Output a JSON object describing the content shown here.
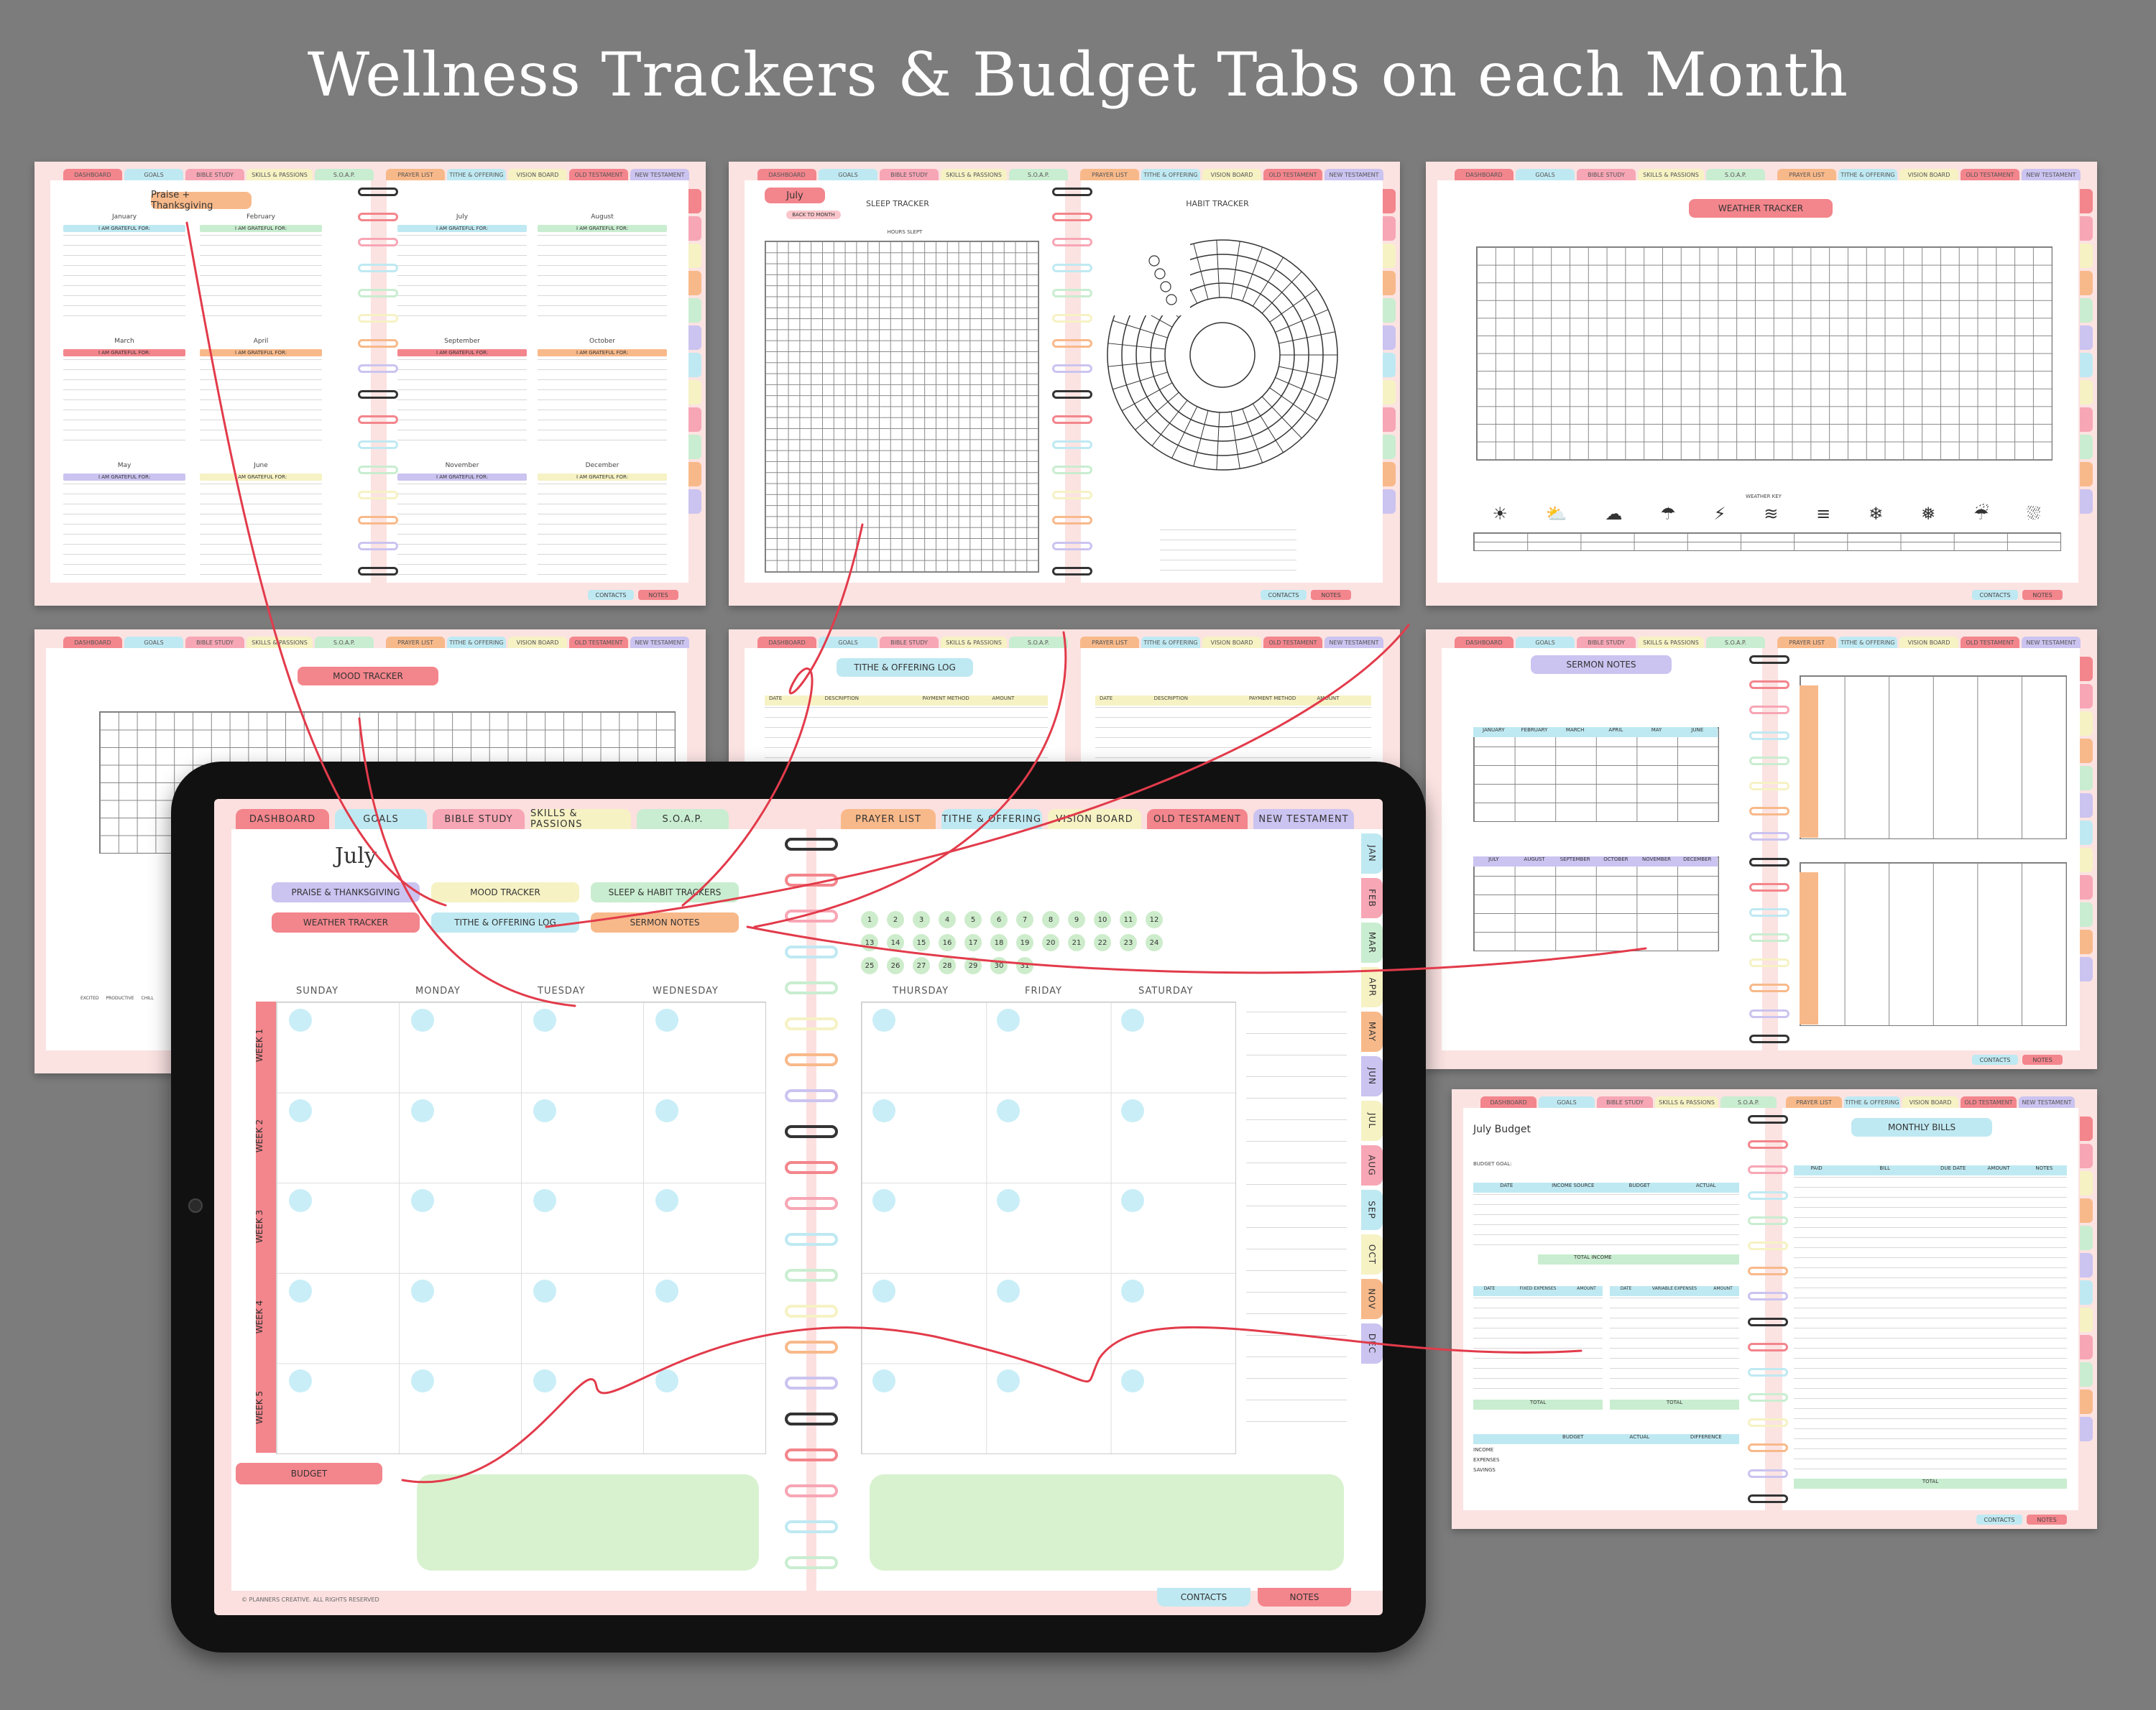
{
  "headline": "Wellness Trackers & Budget Tabs on each Month",
  "colors": {
    "background": "#7c7c7c",
    "pink": "#f3858c",
    "red_line": "#e23b4b",
    "tab_palette": [
      "#f3858c",
      "#bfe9f2",
      "#f7a6b5",
      "#f6f2c4",
      "#c9edd0",
      "#f8b98a",
      "#f9c6cb",
      "#bfe9f2",
      "#f6f2c4",
      "#f3858c",
      "#cbc3f0"
    ]
  },
  "top_tabs": [
    "DASHBOARD",
    "GOALS",
    "BIBLE STUDY",
    "SKILLS & PASSIONS",
    "S.O.A.P.",
    "PRAYER LIST",
    "TITHE & OFFERING",
    "VISION BOARD",
    "OLD TESTAMENT",
    "NEW TESTAMENT"
  ],
  "footer_tabs": [
    "CONTACTS",
    "NOTES"
  ],
  "months_short": [
    "JAN",
    "FEB",
    "MAR",
    "APR",
    "MAY",
    "JUN",
    "JUL",
    "AUG",
    "SEP",
    "OCT",
    "NOV",
    "DEC"
  ],
  "card_praise": {
    "title": "Praise + Thanksgiving",
    "months": [
      "January",
      "February",
      "July",
      "August",
      "March",
      "April",
      "September",
      "October",
      "May",
      "June",
      "November",
      "December"
    ],
    "line_label": "I AM GRATEFUL FOR:"
  },
  "card_sleep": {
    "month": "July",
    "back": "BACK TO MONTH",
    "sleep_title": "SLEEP TRACKER",
    "habit_title": "HABIT TRACKER",
    "hours_label": "HOURS SLEPT"
  },
  "card_weather": {
    "title": "WEATHER TRACKER",
    "key_label": "WEATHER KEY",
    "key_items": [
      "SUNNY",
      "PARTLY CLOUDY",
      "CLOUDY",
      "RAIN",
      "THUNDERSTORMS",
      "WINDY",
      "FOGGY",
      "SNOW",
      "SNOWSTORM",
      "SLEET",
      "HAIL"
    ]
  },
  "card_mood": {
    "title": "MOOD TRACKER",
    "key": [
      "EXCITED",
      "PRODUCTIVE",
      "CHILL"
    ]
  },
  "card_tithe": {
    "title": "TITHE & OFFERING LOG",
    "cols": [
      "DATE",
      "DESCRIPTION",
      "PAYMENT METHOD",
      "AMOUNT"
    ]
  },
  "card_sermon": {
    "title": "SERMON NOTES",
    "months_a": [
      "JANUARY",
      "FEBRUARY",
      "MARCH",
      "APRIL",
      "MAY",
      "JUNE"
    ],
    "months_b": [
      "JULY",
      "AUGUST",
      "SEPTEMBER",
      "OCTOBER",
      "NOVEMBER",
      "DECEMBER"
    ],
    "week_label": "WEEK"
  },
  "card_budget": {
    "title": "July Budget",
    "goal": "BUDGET GOAL:",
    "bills_title": "MONTHLY BILLS",
    "income_cols": [
      "DATE",
      "INCOME SOURCE",
      "BUDGET",
      "ACTUAL"
    ],
    "total_income": "TOTAL INCOME",
    "fixed_cols": [
      "DATE",
      "FIXED EXPENSES",
      "AMOUNT"
    ],
    "variable_cols": [
      "DATE",
      "VARIABLE EXPENSES",
      "AMOUNT"
    ],
    "total": "TOTAL",
    "summary_cols": [
      "BUDGET",
      "ACTUAL",
      "DIFFERENCE"
    ],
    "summary_rows": [
      "INCOME",
      "EXPENSES",
      "SAVINGS"
    ],
    "bill_cols": [
      "PAID",
      "BILL",
      "DUE DATE",
      "AMOUNT",
      "NOTES"
    ]
  },
  "tablet": {
    "month_title": "July",
    "links": [
      "PRAISE & THANKSGIVING",
      "MOOD TRACKER",
      "SLEEP & HABIT TRACKERS",
      "WEATHER TRACKER",
      "TITHE & OFFERING LOG",
      "SERMON NOTES"
    ],
    "days": [
      "SUNDAY",
      "MONDAY",
      "TUESDAY",
      "WEDNESDAY",
      "THURSDAY",
      "FRIDAY",
      "SATURDAY"
    ],
    "weeks": [
      "WEEK 1",
      "WEEK 2",
      "WEEK 3",
      "WEEK 4",
      "WEEK 5"
    ],
    "date_chips": [
      "1",
      "2",
      "3",
      "4",
      "5",
      "6",
      "7",
      "8",
      "9",
      "10",
      "11",
      "12",
      "13",
      "14",
      "15",
      "16",
      "17",
      "18",
      "19",
      "20",
      "21",
      "22",
      "23",
      "24",
      "25",
      "26",
      "27",
      "28",
      "29",
      "30",
      "31"
    ],
    "budget": "BUDGET",
    "copyright": "© PLANNERS CREATIVE. ALL RIGHTS RESERVED"
  }
}
